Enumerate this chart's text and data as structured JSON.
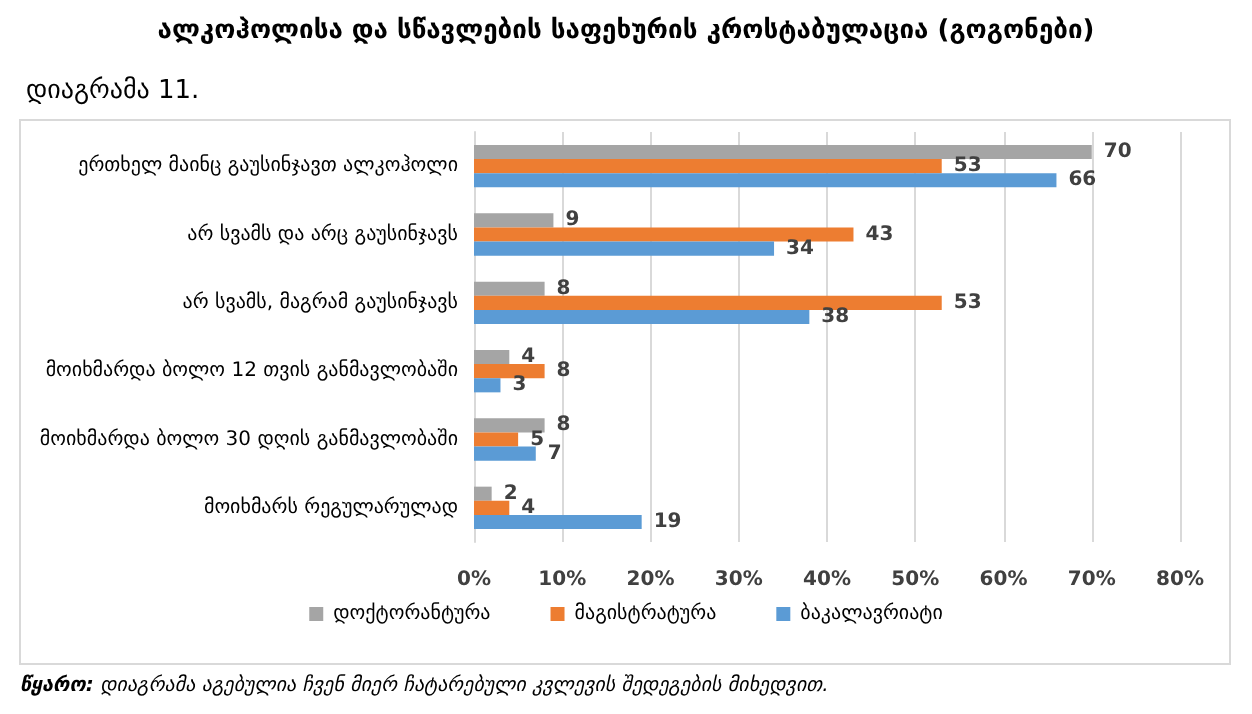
{
  "chart_data": {
    "type": "bar",
    "orientation": "horizontal",
    "title": "ალკოჰოლისა და სწავლების საფეხურის კროსტაბულაცია (გოგონები)",
    "subtitle": "დიაგრამა 11.",
    "categories": [
      "ერთხელ მაინც გაუსინჯავთ ალკოჰოლი",
      "არ სვამს და არც გაუსინჯავს",
      "არ სვამს, მაგრამ გაუსინჯავს",
      "მოიხმარდა ბოლო 12 თვის განმავლობაში",
      "მოიხმარდა ბოლო 30 დღის განმავლობაში",
      "მოიხმარს რეგულარულად"
    ],
    "series": [
      {
        "name": "დოქტორანტურა",
        "color": "#a5a5a5",
        "values": [
          70,
          9,
          8,
          4,
          8,
          2
        ]
      },
      {
        "name": "მაგისტრატურა",
        "color": "#ed7d31",
        "values": [
          53,
          43,
          53,
          8,
          5,
          4
        ]
      },
      {
        "name": "ბაკალავრიატი",
        "color": "#5b9bd5",
        "values": [
          66,
          34,
          38,
          3,
          7,
          19
        ]
      }
    ],
    "xlim": [
      0,
      80
    ],
    "xticks": [
      {
        "value": 0,
        "label": "0%"
      },
      {
        "value": 10,
        "label": "10%"
      },
      {
        "value": 20,
        "label": "20%"
      },
      {
        "value": 30,
        "label": "30%"
      },
      {
        "value": 40,
        "label": "40%"
      },
      {
        "value": 50,
        "label": "50%"
      },
      {
        "value": 60,
        "label": "60%"
      },
      {
        "value": 70,
        "label": "70%"
      },
      {
        "value": 80,
        "label": "80%"
      }
    ],
    "grid": "x",
    "legend": "bottom",
    "data_labels": true,
    "annotations": [
      "წყარო: დიაგრამა აგებულია ჩვენ მიერ ჩატარებული კვლევის შედეგების მიხედვით."
    ]
  }
}
